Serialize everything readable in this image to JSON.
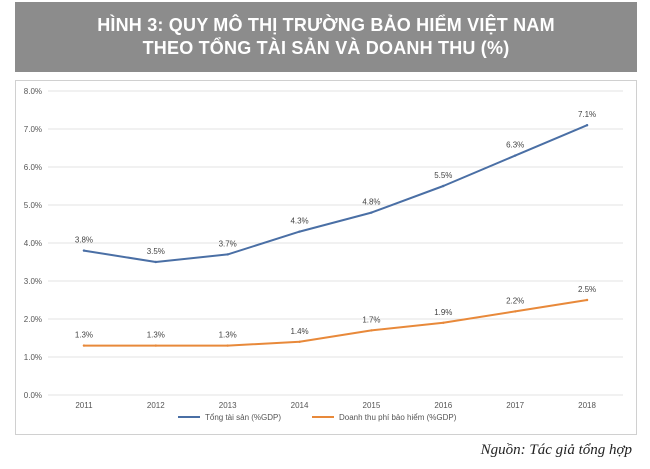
{
  "title": {
    "line1": "HÌNH 3: QUY MÔ THỊ TRƯỜNG BẢO HIỂM VIỆT NAM",
    "line2": "THEO TỔNG TÀI SẢN VÀ DOANH THU (%)"
  },
  "source": "Nguồn: Tác giả tổng hợp",
  "colors": {
    "title_bg": "#8c8c8c",
    "series_blue": "#4a6fa5",
    "series_orange": "#e8893a",
    "grid": "#e3e3e3",
    "text": "#555555"
  },
  "chart_data": {
    "type": "line",
    "title": "",
    "xlabel": "",
    "ylabel": "",
    "categories": [
      "2011",
      "2012",
      "2013",
      "2014",
      "2015",
      "2016",
      "2017",
      "2018"
    ],
    "ylim": [
      0,
      8
    ],
    "yticks": [
      "0.0%",
      "1.0%",
      "2.0%",
      "3.0%",
      "4.0%",
      "5.0%",
      "6.0%",
      "7.0%",
      "8.0%"
    ],
    "grid": true,
    "legend_position": "bottom",
    "series": [
      {
        "name": "Tổng tài sản (%GDP)",
        "color": "#4a6fa5",
        "values": [
          3.8,
          3.5,
          3.7,
          4.3,
          4.8,
          5.5,
          6.3,
          7.1
        ],
        "labels": [
          "3.8%",
          "3.5%",
          "3.7%",
          "4.3%",
          "4.8%",
          "5.5%",
          "6.3%",
          "7.1%"
        ]
      },
      {
        "name": "Doanh thu phí bảo hiểm (%GDP)",
        "color": "#e8893a",
        "values": [
          1.3,
          1.3,
          1.3,
          1.4,
          1.7,
          1.9,
          2.2,
          2.5
        ],
        "labels": [
          "1.3%",
          "1.3%",
          "1.3%",
          "1.4%",
          "1.7%",
          "1.9%",
          "2.2%",
          "2.5%"
        ]
      }
    ]
  }
}
